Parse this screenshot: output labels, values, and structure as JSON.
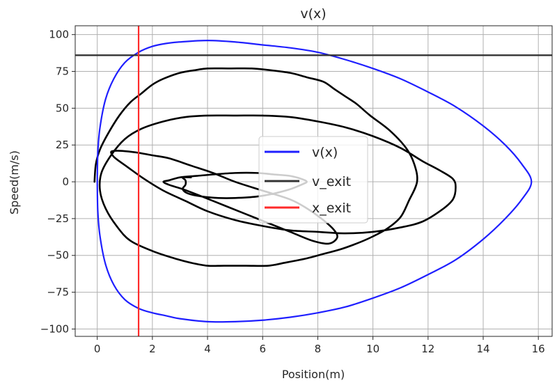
{
  "chart_data": {
    "type": "line",
    "title": "v(x)",
    "xlabel": "Position(m)",
    "ylabel": "Speed(m/s)",
    "xlim": [
      -0.8,
      16.5
    ],
    "ylim": [
      -105,
      106
    ],
    "xticks": [
      0,
      2,
      4,
      6,
      8,
      10,
      12,
      14,
      16
    ],
    "xtick_labels": [
      "0",
      "2",
      "4",
      "6",
      "8",
      "10",
      "12",
      "14",
      "16"
    ],
    "yticks": [
      -100,
      -75,
      -50,
      -25,
      0,
      25,
      50,
      75,
      100
    ],
    "ytick_labels": [
      "−100",
      "−75",
      "−50",
      "−25",
      "0",
      "25",
      "50",
      "75",
      "100"
    ],
    "grid": true,
    "legend_position": "center",
    "series": [
      {
        "name": "v(x)",
        "color": "#1f1fff",
        "kind": "curve",
        "x": [
          0.0,
          0.02,
          0.1,
          0.3,
          0.6,
          1.0,
          1.5,
          2.0,
          2.5,
          3.0,
          4.0,
          5.0,
          6.0,
          7.0,
          8.0,
          9.0,
          10.0,
          11.0,
          12.0,
          13.0,
          14.0,
          14.8,
          15.4,
          15.75,
          15.4,
          14.8,
          14.0,
          13.0,
          12.0,
          11.0,
          10.0,
          9.0,
          8.0,
          7.0,
          6.0,
          5.0,
          4.0,
          3.0,
          2.5,
          2.0,
          1.5,
          1.0,
          0.6,
          0.3,
          0.1,
          0.02,
          0.0
        ],
        "y": [
          0,
          20,
          37,
          56,
          70,
          81,
          88,
          92,
          94,
          95,
          96,
          95,
          93,
          91,
          88,
          83,
          77,
          70,
          61,
          51,
          38,
          25,
          12,
          0,
          -12,
          -25,
          -39,
          -53,
          -63,
          -72,
          -79,
          -85,
          -89,
          -92,
          -94,
          -95,
          -95,
          -93,
          -91,
          -89,
          -86,
          -80,
          -70,
          -56,
          -37,
          -20,
          0
        ]
      },
      {
        "name": "v_exit",
        "color": "#333333",
        "kind": "hline",
        "value": 86
      },
      {
        "name": "x_exit",
        "color": "#ff2a2a",
        "kind": "vline",
        "value": 1.5
      },
      {
        "name": "",
        "color": "#000000",
        "kind": "curve",
        "x": [
          -0.1,
          -0.05,
          0.1,
          0.4,
          0.8,
          1.2,
          1.6,
          2.0,
          2.4,
          3.0,
          3.6,
          4.0,
          4.8,
          5.6,
          6.2,
          7.0,
          7.6,
          8.2,
          8.6,
          9.0,
          9.4,
          9.9,
          10.6,
          11.2,
          11.5,
          11.6,
          11.3,
          11.0,
          10.5,
          9.9,
          9.4,
          8.8,
          8.2,
          7.6,
          6.8,
          6.2,
          5.4,
          4.6,
          4.0,
          3.4,
          2.8,
          2.0,
          1.2,
          0.7,
          0.3,
          0.1,
          0.15,
          0.5,
          1.0,
          1.6,
          2.4,
          3.2,
          4.0,
          5.0,
          6.0,
          7.0,
          8.0,
          9.0,
          10.0,
          11.0,
          11.8,
          12.4,
          12.9,
          13.0,
          12.9,
          12.5,
          11.8,
          11.0,
          10.0,
          9.0,
          8.0,
          7.0,
          6.0,
          5.0,
          4.0,
          3.2,
          2.4,
          1.7,
          1.1,
          0.8,
          0.6,
          0.5,
          0.6,
          0.9,
          1.4,
          2.0,
          2.6,
          3.4,
          4.2,
          5.0,
          6.0,
          7.0,
          7.6,
          8.2,
          8.6,
          8.7,
          8.4,
          7.8,
          7.0,
          6.2,
          5.4,
          4.6,
          3.8,
          3.1,
          2.6,
          2.4,
          2.6,
          3.0,
          3.6,
          4.2,
          5.0,
          5.8,
          6.4,
          7.0,
          7.4,
          7.6,
          7.4,
          7.0,
          6.4,
          5.8,
          5.0,
          4.4,
          3.8,
          3.3,
          3.1,
          3.2,
          3.2,
          3.1,
          3.4
        ],
        "y": [
          0,
          12,
          22,
          33,
          45,
          54,
          60,
          66,
          70,
          74,
          76,
          77,
          77,
          77,
          76,
          74,
          71,
          68,
          63,
          58,
          53,
          45,
          35,
          23,
          12,
          0,
          -13,
          -24,
          -32,
          -38,
          -42,
          -46,
          -49,
          -52,
          -55,
          -57,
          -57,
          -57,
          -57,
          -55,
          -52,
          -47,
          -40,
          -30,
          -18,
          -6,
          6,
          18,
          29,
          36,
          41,
          44,
          45,
          45,
          45,
          44,
          41,
          37,
          31,
          23,
          14,
          8,
          2,
          -4,
          -12,
          -19,
          -27,
          -31,
          -34,
          -35,
          -34,
          -33,
          -30,
          -26,
          -20,
          -13,
          -6,
          2,
          10,
          14,
          17,
          20,
          21,
          21,
          20,
          18,
          16,
          11,
          6,
          0,
          -6,
          -12,
          -18,
          -26,
          -33,
          -38,
          -42,
          -40,
          -34,
          -28,
          -22,
          -16,
          -10,
          -5,
          -2,
          0,
          1,
          3,
          4,
          5,
          6,
          6,
          5,
          4,
          2,
          0,
          -2,
          -5,
          -8,
          -10,
          -11,
          -11,
          -10,
          -8,
          -5,
          -2,
          1,
          3,
          3
        ]
      }
    ]
  }
}
